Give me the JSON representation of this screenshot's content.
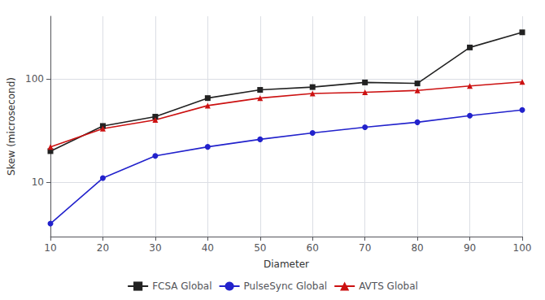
{
  "chart_data": {
    "type": "line",
    "x": [
      10,
      20,
      30,
      40,
      50,
      60,
      70,
      80,
      90,
      100
    ],
    "series": [
      {
        "name": "FCSA Global",
        "color": "#222222",
        "marker": "square",
        "values": [
          20,
          35,
          43,
          65,
          78,
          83,
          92,
          90,
          200,
          280
        ]
      },
      {
        "name": "PulseSync Global",
        "color": "#2222cc",
        "marker": "circle",
        "values": [
          4,
          11,
          18,
          22,
          26,
          30,
          34,
          38,
          44,
          50
        ]
      },
      {
        "name": "AVTS Global",
        "color": "#cc1111",
        "marker": "triangle",
        "values": [
          22,
          33,
          40,
          55,
          65,
          72,
          74,
          77,
          85,
          93
        ]
      }
    ],
    "xlabel": "Diameter",
    "ylabel": "Skew (microsecond)",
    "xlim": [
      10,
      100
    ],
    "xticks": [
      10,
      20,
      30,
      40,
      50,
      60,
      70,
      80,
      90,
      100
    ],
    "ylim": [
      3,
      400
    ],
    "yticks": [
      10,
      100
    ],
    "log": "y",
    "grid": true,
    "legend": "bottom"
  }
}
